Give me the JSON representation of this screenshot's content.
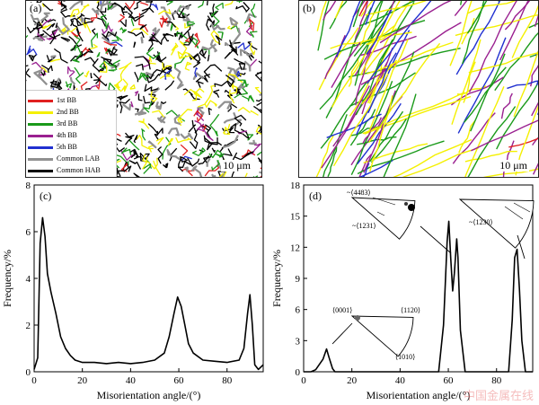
{
  "panel_a": {
    "label": "(a)",
    "scale_bar": "10 μm",
    "legend": [
      {
        "label": "1st BB",
        "color": "#e02020"
      },
      {
        "label": "2nd BB",
        "color": "#f4f000"
      },
      {
        "label": "3rd BB",
        "color": "#1a9a1a"
      },
      {
        "label": "4th BB",
        "color": "#9a2090"
      },
      {
        "label": "5th BB",
        "color": "#2030d0"
      },
      {
        "label": "Common LAB",
        "color": "#909090"
      },
      {
        "label": "Common HAB",
        "color": "#000000"
      }
    ]
  },
  "panel_b": {
    "label": "(b)",
    "scale_bar": "10 μm"
  },
  "chart_data": [
    {
      "type": "line",
      "panel_label": "(c)",
      "xlabel": "Misorientation angle/(°)",
      "ylabel": "Frequency/%",
      "xlim": [
        0,
        95
      ],
      "ylim": [
        0,
        8
      ],
      "xticks": [
        0,
        20,
        40,
        60,
        80
      ],
      "yticks": [
        0,
        2,
        4,
        6,
        8
      ],
      "series": [
        {
          "x": [
            0,
            1.5,
            2.5,
            3.5,
            4.5,
            5.5,
            7,
            9,
            11,
            13,
            15,
            17,
            20,
            25,
            30,
            35,
            40,
            45,
            50,
            54,
            56,
            58,
            59.5,
            61,
            62.5,
            64,
            66,
            70,
            75,
            80,
            85,
            87,
            88.5,
            89.5,
            90.5,
            91.5,
            93,
            95
          ],
          "y": [
            0.1,
            0.6,
            5.5,
            6.6,
            5.8,
            4.2,
            3.4,
            2.5,
            1.5,
            1.0,
            0.7,
            0.5,
            0.4,
            0.4,
            0.35,
            0.4,
            0.35,
            0.4,
            0.5,
            0.8,
            1.5,
            2.5,
            3.2,
            2.8,
            2.0,
            1.2,
            0.8,
            0.5,
            0.45,
            0.4,
            0.5,
            1.0,
            2.5,
            3.3,
            2.0,
            0.3,
            0.1,
            0.3
          ]
        }
      ]
    },
    {
      "type": "line",
      "panel_label": "(d)",
      "xlabel": "Misorientation angle/(°)",
      "ylabel": "Frequency/%",
      "xlim": [
        0,
        95
      ],
      "ylim": [
        0,
        18
      ],
      "xticks": [
        0,
        20,
        40,
        60,
        80
      ],
      "yticks": [
        0,
        3,
        6,
        9,
        12,
        15,
        18
      ],
      "series": [
        {
          "x": [
            0,
            3,
            5,
            8,
            9.5,
            10.5,
            12,
            13,
            56,
            58,
            59.5,
            60.2,
            61,
            61.8,
            62.5,
            63.5,
            64,
            65,
            67,
            85,
            86.5,
            87.5,
            88.5,
            89.5,
            90.5,
            92,
            95
          ],
          "y": [
            0,
            0,
            0.2,
            1.2,
            2.2,
            1.4,
            0.3,
            0,
            0,
            4.5,
            12.5,
            14.5,
            11.0,
            7.8,
            9.5,
            12.8,
            11.0,
            4.0,
            0,
            0,
            5.0,
            11.0,
            11.8,
            8.0,
            3.0,
            0,
            0
          ]
        }
      ],
      "insets": [
        {
          "top_label": "~⟨4483⟩",
          "bottom_label": "~⟨1231⟩"
        },
        {
          "top_label": "~⟨1230⟩"
        },
        {
          "corner_left": "⟨0001⟩",
          "corner_right": "⟨1120⟩",
          "corner_bottom": "⟨1010⟩"
        }
      ]
    }
  ],
  "watermark": "中国金属在线"
}
